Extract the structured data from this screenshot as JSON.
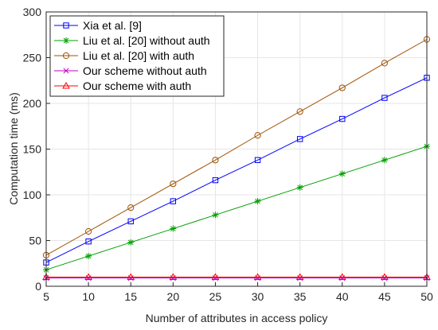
{
  "chart_data": {
    "type": "line",
    "xlabel": "Number of attributes in access policy",
    "ylabel": "Computation time (ms)",
    "xlim": [
      5,
      50
    ],
    "ylim": [
      0,
      300
    ],
    "xticks": [
      5,
      10,
      15,
      20,
      25,
      30,
      35,
      40,
      45,
      50
    ],
    "yticks": [
      0,
      50,
      100,
      150,
      200,
      250,
      300
    ],
    "grid": true,
    "legend_position": "top-left",
    "x": [
      5,
      10,
      15,
      20,
      25,
      30,
      35,
      40,
      45,
      50
    ],
    "series": [
      {
        "name": "Xia et al. [9]",
        "color": "#0000ff",
        "marker": "square",
        "values": [
          26,
          49,
          71,
          93,
          116,
          138,
          161,
          183,
          206,
          228
        ]
      },
      {
        "name": "Liu et al. [20] without auth",
        "color": "#00a000",
        "marker": "asterisk",
        "values": [
          18,
          33,
          48,
          63,
          78,
          93,
          108,
          123,
          138,
          153
        ]
      },
      {
        "name": "Liu et al. [20] with auth",
        "color": "#a05000",
        "marker": "circle",
        "values": [
          34,
          60,
          86,
          112,
          138,
          165,
          191,
          217,
          244,
          270
        ]
      },
      {
        "name": "Our scheme without auth",
        "color": "#c000c0",
        "marker": "x",
        "values": [
          9,
          9,
          9,
          9,
          9,
          9,
          9,
          9,
          9,
          9
        ]
      },
      {
        "name": "Our scheme with auth",
        "color": "#ff0000",
        "marker": "triangle",
        "values": [
          10,
          10,
          10,
          10,
          10,
          10,
          10,
          10,
          10,
          10
        ]
      }
    ]
  }
}
